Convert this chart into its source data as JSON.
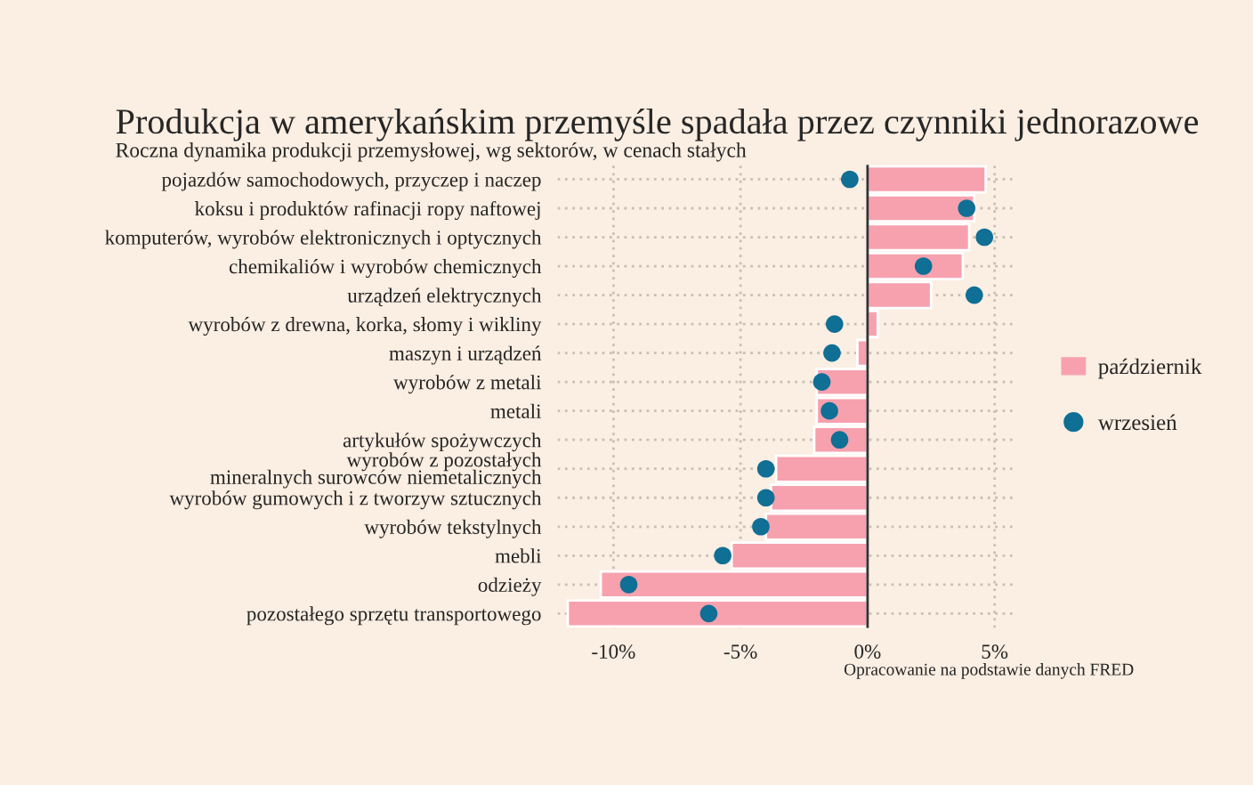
{
  "chart_data": {
    "type": "bar",
    "orientation": "horizontal",
    "title": "Produkcja w amerykańskim przemyśle spadała przez czynniki jednorazowe",
    "subtitle": "Roczna dynamika produkcji przemysłowej, wg sektorów, w cenach stałych",
    "categories": [
      "pojazdów samochodowych, przyczep i naczep",
      "koksu i produktów rafinacji ropy naftowej",
      "komputerów, wyrobów elektronicznych i optycznych",
      "chemikaliów i wyrobów chemicznych",
      "urządzeń elektrycznych",
      "wyrobów z drewna, korka, słomy i wikliny",
      "maszyn i urządzeń",
      "wyrobów z metali",
      "metali",
      "artykułów spożywczych",
      "wyrobów z pozostałych\nmineralnych surowców niemetalicznych",
      "wyrobów gumowych i z tworzyw sztucznych",
      "wyrobów tekstylnych",
      "mebli",
      "odzieży",
      "pozostałego sprzętu transportowego"
    ],
    "series": [
      {
        "name": "październik",
        "color": "#f7a1ae",
        "values": [
          4.65,
          4.2,
          4.0,
          3.75,
          2.5,
          0.4,
          -0.4,
          -2.0,
          -2.0,
          -2.1,
          -3.6,
          -3.8,
          -4.0,
          -5.35,
          -10.5,
          -11.8
        ]
      },
      {
        "name": "wrzesień",
        "type": "scatter",
        "color": "#0f6f95",
        "values": [
          -0.7,
          3.9,
          4.6,
          2.2,
          4.2,
          -1.3,
          -1.4,
          -1.8,
          -1.5,
          -1.1,
          -4.0,
          -4.0,
          -4.2,
          -5.7,
          -9.4,
          -6.25
        ]
      }
    ],
    "xlim": [
      -12.2,
      5.8
    ],
    "xticks": [
      {
        "value": -10,
        "label": "-10%"
      },
      {
        "value": -5,
        "label": "-5%"
      },
      {
        "value": 0,
        "label": "0%"
      },
      {
        "value": 5,
        "label": "5%"
      }
    ],
    "ref_lines": [
      {
        "axis": "x",
        "value": 0,
        "color": "#333333"
      }
    ],
    "grid": true,
    "legend": "right",
    "marker": "circle",
    "annotations": [
      "Opracowanie na podstawie danych FRED"
    ]
  }
}
